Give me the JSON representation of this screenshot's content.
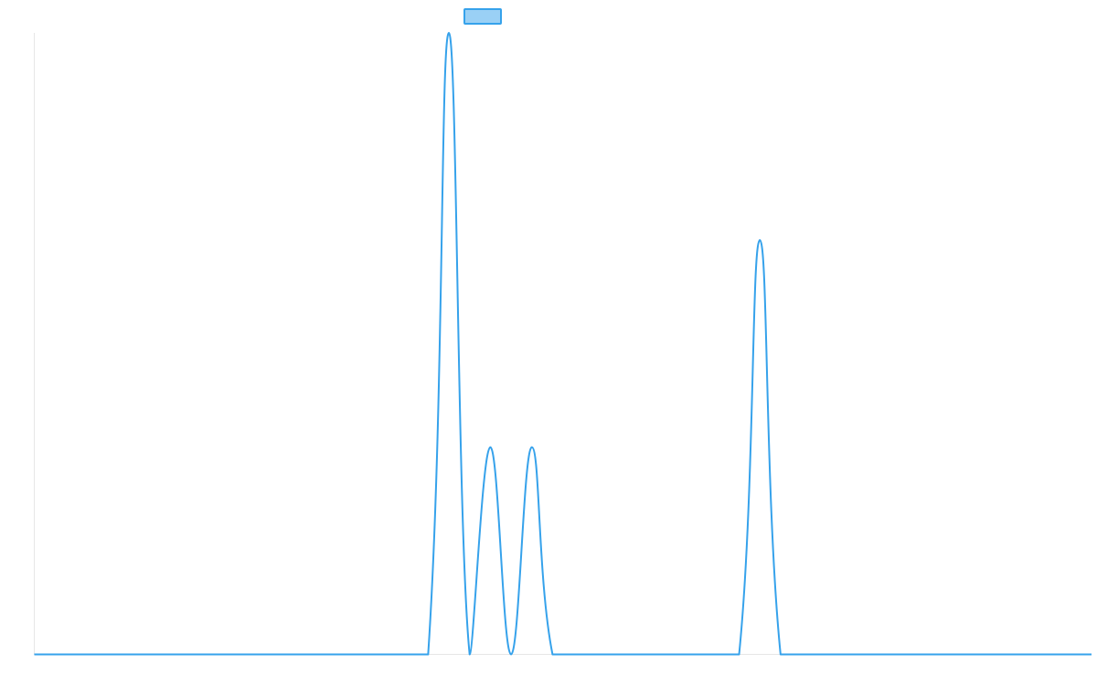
{
  "chart_data": {
    "type": "line",
    "title": "",
    "xlabel": "",
    "ylabel": "",
    "xlim": [
      0,
      51
    ],
    "ylim": [
      0,
      1.5
    ],
    "grid": false,
    "legend": {
      "position": "top-center",
      "entries": [
        {
          "name": "",
          "swatch_color": "#9ad0f5"
        }
      ]
    },
    "series": [
      {
        "name": "",
        "color": "#36a2eb",
        "x": [
          0,
          1,
          2,
          3,
          4,
          5,
          6,
          7,
          8,
          9,
          10,
          11,
          12,
          13,
          14,
          15,
          16,
          17,
          18,
          19,
          20,
          21,
          22,
          23,
          24,
          25,
          26,
          27,
          28,
          29,
          30,
          31,
          32,
          33,
          34,
          35,
          36,
          37,
          38,
          39,
          40,
          41,
          42,
          43,
          44,
          45,
          46,
          47,
          48,
          49,
          50,
          51
        ],
        "y": [
          0,
          0,
          0,
          0,
          0,
          0,
          0,
          0,
          0,
          0,
          0,
          0,
          0,
          0,
          0,
          0,
          0,
          0,
          0,
          0,
          1.5,
          0,
          0.5,
          0,
          0.5,
          0,
          0,
          0,
          0,
          0,
          0,
          0,
          0,
          0,
          0,
          1.0,
          0,
          0,
          0,
          0,
          0,
          0,
          0,
          0,
          0,
          0,
          0,
          0,
          0,
          0,
          0,
          0
        ]
      }
    ]
  }
}
